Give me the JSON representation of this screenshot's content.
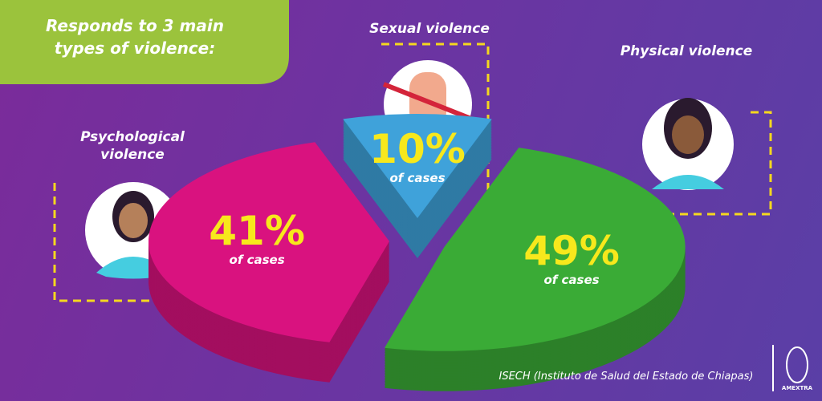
{
  "chart_data": {
    "type": "pie",
    "title": "Responds to 3 main types of violence:",
    "categories": [
      "Psychological violence",
      "Sexual violence",
      "Physical violence"
    ],
    "values": [
      41,
      10,
      49
    ],
    "value_labels": [
      "41%",
      "10%",
      "49%"
    ],
    "value_sublabels": [
      "of cases",
      "of cases",
      "of cases"
    ],
    "colors": [
      "#d9127f",
      "#3fa2da",
      "#3aab36"
    ],
    "source": "ISECH (Instituto de Salud del Estado de Chiapas)",
    "logo": "AMEXTRA"
  }
}
